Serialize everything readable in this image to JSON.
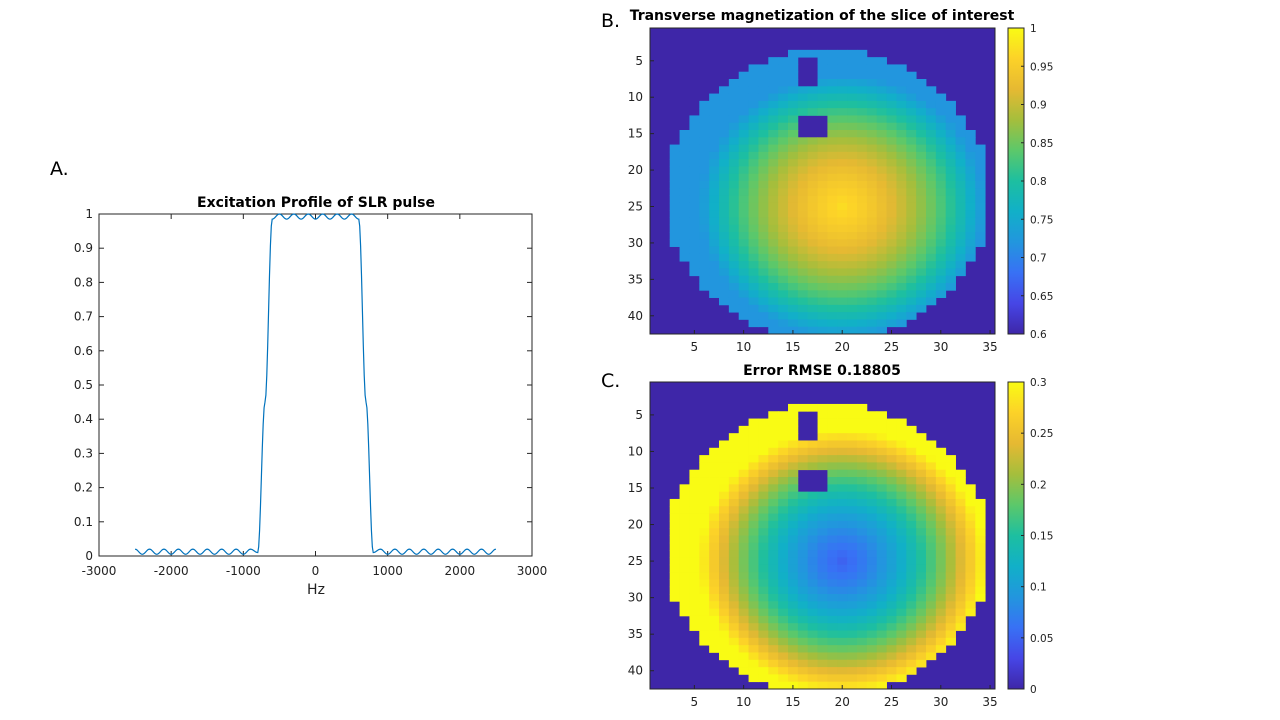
{
  "chart_data": [
    {
      "panel": "A.",
      "type": "line",
      "title": "Excitation Profile of SLR pulse",
      "xlabel": "Hz",
      "ylabel": "",
      "xlim": [
        -3000,
        3000
      ],
      "ylim": [
        0,
        1
      ],
      "xticks": [
        -3000,
        -2000,
        -1000,
        0,
        1000,
        2000,
        3000
      ],
      "yticks": [
        0,
        0.1,
        0.2,
        0.3,
        0.4,
        0.5,
        0.6,
        0.7,
        0.8,
        0.9,
        1
      ],
      "line_color": "#0072BD",
      "x": [
        -2500,
        -2400,
        -2300,
        -2200,
        -2100,
        -2000,
        -1900,
        -1800,
        -1700,
        -1600,
        -1500,
        -1400,
        -1300,
        -1200,
        -1100,
        -1000,
        -900,
        -800,
        -700,
        -600,
        -500,
        -400,
        -300,
        -200,
        -100,
        0,
        100,
        200,
        300,
        400,
        500,
        600,
        700,
        800,
        900,
        1000,
        1100,
        1200,
        1300,
        1400,
        1500,
        1600,
        1700,
        1800,
        1900,
        2000,
        2100,
        2200,
        2300,
        2400,
        2500
      ],
      "y": [
        0.02,
        0.005,
        0.02,
        0.005,
        0.02,
        0.005,
        0.02,
        0.005,
        0.02,
        0.005,
        0.02,
        0.005,
        0.02,
        0.005,
        0.02,
        0.005,
        0.02,
        0.01,
        0.45,
        0.985,
        1.0,
        0.985,
        1.0,
        0.985,
        1.0,
        0.985,
        1.0,
        0.985,
        1.0,
        0.985,
        1.0,
        0.985,
        0.45,
        0.01,
        0.02,
        0.005,
        0.02,
        0.005,
        0.02,
        0.005,
        0.02,
        0.005,
        0.02,
        0.005,
        0.02,
        0.005,
        0.02,
        0.005,
        0.02,
        0.005,
        0.02
      ]
    },
    {
      "panel": "B.",
      "type": "heatmap",
      "title": "Transverse magnetization of the slice of interest",
      "xticks": [
        5,
        10,
        15,
        20,
        25,
        30,
        35
      ],
      "yticks": [
        5,
        10,
        15,
        20,
        25,
        30,
        35,
        40
      ],
      "xlim": [
        0.5,
        35.5
      ],
      "ylim": [
        0.5,
        42.5
      ],
      "colorbar_ticks": [
        0.6,
        0.65,
        0.7,
        0.75,
        0.8,
        0.85,
        0.9,
        0.95,
        1
      ],
      "colorbar_labels": [
        "0.6",
        "0.65",
        "0.7",
        "0.75",
        "0.8",
        "0.85",
        "0.9",
        "0.95",
        "1"
      ],
      "clim": [
        0.6,
        1
      ],
      "background_value": 0.6,
      "colormap": "parula",
      "peak_value": 0.97,
      "rim_value": 0.72,
      "peak_row": 25,
      "peak_col": 20
    },
    {
      "panel": "C.",
      "type": "heatmap",
      "title": "Error RMSE  0.18805",
      "xticks": [
        5,
        10,
        15,
        20,
        25,
        30,
        35
      ],
      "yticks": [
        5,
        10,
        15,
        20,
        25,
        30,
        35,
        40
      ],
      "xlim": [
        0.5,
        35.5
      ],
      "ylim": [
        0.5,
        42.5
      ],
      "colorbar_ticks": [
        0,
        0.05,
        0.1,
        0.15,
        0.2,
        0.25,
        0.3
      ],
      "colorbar_labels": [
        "0",
        "0.05",
        "0.1",
        "0.15",
        "0.2",
        "0.25",
        "0.3"
      ],
      "clim": [
        0,
        0.3
      ],
      "background_value": 0,
      "colormap": "parula",
      "peak_value": 0.05,
      "rim_value": 0.3,
      "peak_row": 25,
      "peak_col": 20
    }
  ]
}
